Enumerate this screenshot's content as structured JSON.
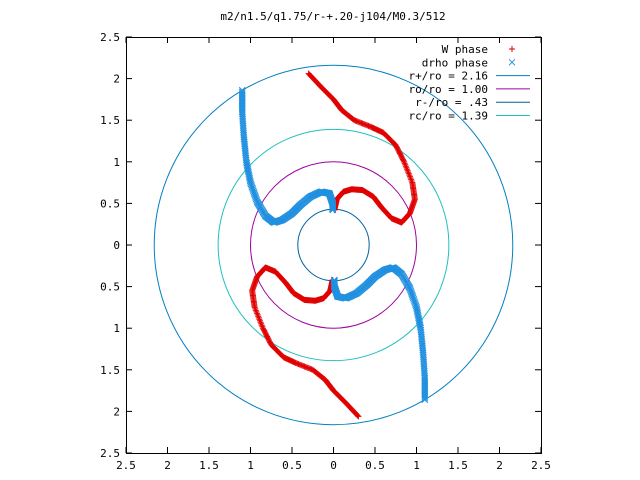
{
  "chart_data": {
    "type": "scatter",
    "title": "m2/n1.5/q1.75/r-+.20-j104/M0.3/512",
    "xlabel": "",
    "ylabel": "",
    "xlim": [
      -2.5,
      2.5
    ],
    "ylim": [
      -2.5,
      2.5
    ],
    "x_ticks": [
      -2.5,
      -2,
      -1.5,
      -1,
      -0.5,
      0,
      0.5,
      1,
      1.5,
      2,
      2.5
    ],
    "y_ticks": [
      -2.5,
      -2,
      -1.5,
      -1,
      -0.5,
      0,
      0.5,
      1,
      1.5,
      2,
      2.5
    ],
    "x_tick_labels": [
      "2.5",
      "2",
      "1.5",
      "1",
      "0.5",
      "0",
      "0.5",
      "1",
      "1.5",
      "2",
      "2.5"
    ],
    "y_tick_labels": [
      "2.5",
      "2",
      "1.5",
      "1",
      "0.5",
      "0",
      "0.5",
      "1",
      "1.5",
      "2",
      "2.5"
    ],
    "grid": false,
    "legend_position": "top-right",
    "circles": [
      {
        "name": "r+/ro = 2.16",
        "radius": 2.16,
        "color": "#0080c0"
      },
      {
        "name": "ro/ro = 1.00",
        "radius": 1.0,
        "color": "#a000a0"
      },
      {
        "name": "r-/ro = .43",
        "radius": 0.43,
        "color": "#0060a0"
      },
      {
        "name": "rc/ro = 1.39",
        "radius": 1.39,
        "color": "#20c0c0"
      }
    ],
    "series": [
      {
        "name": "W phase",
        "marker": "plus",
        "color": "#e00000",
        "arms": [
          [
            [
              -0.3,
              2.06
            ],
            [
              -0.15,
              1.9
            ],
            [
              0.0,
              1.75
            ],
            [
              0.1,
              1.62
            ],
            [
              0.25,
              1.5
            ],
            [
              0.45,
              1.42
            ],
            [
              0.6,
              1.35
            ],
            [
              0.75,
              1.2
            ],
            [
              0.85,
              1.0
            ],
            [
              0.95,
              0.75
            ],
            [
              0.98,
              0.55
            ],
            [
              0.92,
              0.38
            ],
            [
              0.82,
              0.27
            ],
            [
              0.7,
              0.32
            ],
            [
              0.58,
              0.45
            ],
            [
              0.48,
              0.58
            ],
            [
              0.35,
              0.66
            ],
            [
              0.22,
              0.67
            ],
            [
              0.12,
              0.64
            ],
            [
              0.04,
              0.55
            ],
            [
              0.01,
              0.42
            ]
          ],
          [
            [
              0.3,
              -2.06
            ],
            [
              0.15,
              -1.9
            ],
            [
              0.0,
              -1.75
            ],
            [
              -0.1,
              -1.62
            ],
            [
              -0.25,
              -1.5
            ],
            [
              -0.45,
              -1.42
            ],
            [
              -0.6,
              -1.35
            ],
            [
              -0.75,
              -1.2
            ],
            [
              -0.85,
              -1.0
            ],
            [
              -0.95,
              -0.75
            ],
            [
              -0.98,
              -0.55
            ],
            [
              -0.92,
              -0.38
            ],
            [
              -0.82,
              -0.27
            ],
            [
              -0.7,
              -0.32
            ],
            [
              -0.58,
              -0.45
            ],
            [
              -0.48,
              -0.58
            ],
            [
              -0.35,
              -0.66
            ],
            [
              -0.22,
              -0.67
            ],
            [
              -0.12,
              -0.64
            ],
            [
              -0.04,
              -0.55
            ],
            [
              -0.01,
              -0.42
            ]
          ]
        ]
      },
      {
        "name": "drho phase",
        "marker": "cross",
        "color": "#2090e0",
        "arms": [
          [
            [
              -1.1,
              1.86
            ],
            [
              -1.1,
              1.6
            ],
            [
              -1.08,
              1.3
            ],
            [
              -1.05,
              1.0
            ],
            [
              -1.0,
              0.75
            ],
            [
              -0.92,
              0.52
            ],
            [
              -0.82,
              0.35
            ],
            [
              -0.72,
              0.27
            ],
            [
              -0.62,
              0.3
            ],
            [
              -0.5,
              0.38
            ],
            [
              -0.4,
              0.48
            ],
            [
              -0.28,
              0.58
            ],
            [
              -0.15,
              0.64
            ],
            [
              -0.05,
              0.62
            ],
            [
              -0.01,
              0.5
            ],
            [
              -0.01,
              0.42
            ]
          ],
          [
            [
              1.1,
              -1.86
            ],
            [
              1.1,
              -1.6
            ],
            [
              1.08,
              -1.3
            ],
            [
              1.05,
              -1.0
            ],
            [
              1.0,
              -0.75
            ],
            [
              0.92,
              -0.52
            ],
            [
              0.82,
              -0.35
            ],
            [
              0.72,
              -0.27
            ],
            [
              0.62,
              -0.3
            ],
            [
              0.5,
              -0.38
            ],
            [
              0.4,
              -0.48
            ],
            [
              0.28,
              -0.58
            ],
            [
              0.15,
              -0.64
            ],
            [
              0.05,
              -0.62
            ],
            [
              0.01,
              -0.5
            ],
            [
              0.01,
              -0.42
            ]
          ]
        ]
      }
    ]
  }
}
